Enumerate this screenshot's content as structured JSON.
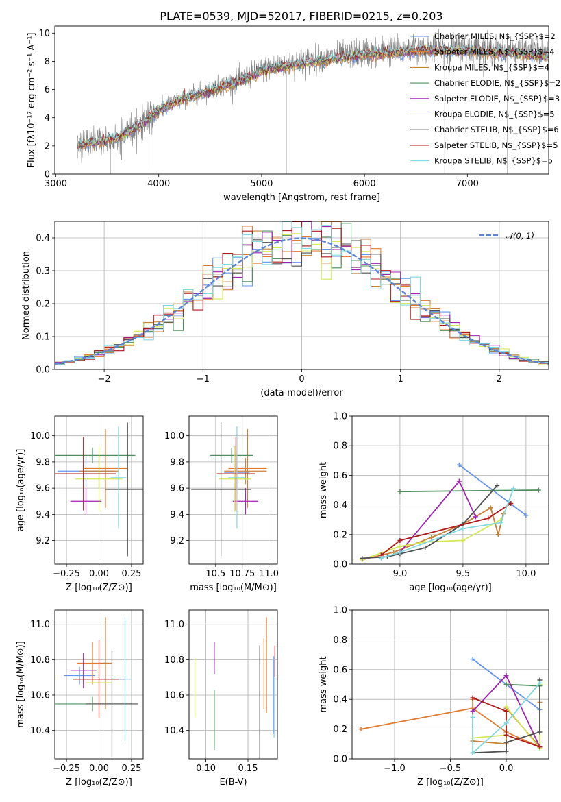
{
  "title": "PLATE=0539, MJD=52017, FIBERID=0215, z=0.203",
  "colors": [
    "#6495ed",
    "#e07b30",
    "#c8823c",
    "#4f8f5f",
    "#a020b0",
    "#d4e857",
    "#505050",
    "#b01818",
    "#80d8e0"
  ],
  "chart_data": [
    {
      "id": "spectrum",
      "type": "line",
      "xlabel": "wavelength [Angstrom, rest frame]",
      "ylabel": "Flux [fλ10⁻¹⁷ erg cm⁻² s⁻¹ A⁻¹]",
      "xlim": [
        2990,
        7790
      ],
      "ylim": [
        0,
        10.5
      ],
      "xticks": [
        "3000",
        "4000",
        "5000",
        "6000",
        "7000"
      ],
      "yticks": [
        "0",
        "2",
        "4",
        "6",
        "8",
        "10"
      ],
      "grid": false,
      "legend_position": "top-right",
      "continuum": {
        "x": [
          3210,
          3400,
          3600,
          3800,
          4000,
          4200,
          4500,
          4800,
          5000,
          5300,
          5600,
          6000,
          6500,
          7000,
          7500,
          7790
        ],
        "y": [
          2.1,
          2.3,
          2.6,
          3.4,
          4.6,
          5.3,
          6.0,
          6.7,
          7.4,
          7.9,
          8.2,
          8.6,
          8.9,
          8.9,
          8.7,
          8.5
        ]
      },
      "series": [
        {
          "name": "Chabrier MILES, N$_{SSP}$=2"
        },
        {
          "name": "Salpeter MILES, N$_{SSP}$=4"
        },
        {
          "name": "Kroupa MILES, N$_{SSP}$=4"
        },
        {
          "name": "Chabrier ELODIE, N$_{SSP}$=2"
        },
        {
          "name": "Salpeter ELODIE, N$_{SSP}$=3"
        },
        {
          "name": "Kroupa ELODIE, N$_{SSP}$=5"
        },
        {
          "name": "Chabrier STELIB, N$_{SSP}$=6"
        },
        {
          "name": "Salpeter STELIB, N$_{SSP}$=5"
        },
        {
          "name": "Kroupa STELIB, N$_{SSP}$=5"
        }
      ]
    },
    {
      "id": "residuals",
      "type": "histogram",
      "xlabel": "(data-model)/error",
      "ylabel": "Normed distribution",
      "xlim": [
        -2.5,
        2.5
      ],
      "ylim": [
        0,
        0.45
      ],
      "xticks": [
        "−2",
        "−1",
        "0",
        "1",
        "2"
      ],
      "yticks": [
        "0.0",
        "0.1",
        "0.2",
        "0.3",
        "0.4"
      ],
      "grid": true,
      "bin_width": 0.1,
      "reference": {
        "name": "𝒩(0, 1)",
        "mean": 0,
        "sigma": 1
      },
      "legend_position": "top-right"
    },
    {
      "id": "age-vs-Z",
      "type": "errorbar",
      "xlabel": "Z [log₁₀(Z/Z⊙)]",
      "ylabel": "age  [log₁₀(age/yr)]",
      "xlim": [
        -0.34,
        0.34
      ],
      "ylim": [
        9.02,
        10.15
      ],
      "xticks": [
        "−0.25",
        "0.00",
        "0.25"
      ],
      "yticks": [
        "9.2",
        "9.4",
        "9.6",
        "9.8",
        "10.0"
      ],
      "grid": true,
      "points": [
        {
          "x": -0.1,
          "xerr": 0.22,
          "y": 9.73,
          "yerr": 0.12
        },
        {
          "x": 0.05,
          "xerr": 0.17,
          "y": 9.75,
          "yerr": 0.3
        },
        {
          "x": 0.0,
          "xerr": 0.15,
          "y": 9.73,
          "yerr": 0.13
        },
        {
          "x": -0.05,
          "xerr": 0.33,
          "y": 9.85,
          "yerr": 0.06
        },
        {
          "x": -0.1,
          "xerr": 0.12,
          "y": 9.5,
          "yerr": 0.1
        },
        {
          "x": 0.0,
          "xerr": 0.18,
          "y": 9.67,
          "yerr": 0.25
        },
        {
          "x": 0.22,
          "xerr": 0.17,
          "y": 9.59,
          "yerr": 0.51
        },
        {
          "x": -0.12,
          "xerr": 0.25,
          "y": 9.71,
          "yerr": 0.28
        },
        {
          "x": 0.15,
          "xerr": 0.06,
          "y": 9.68,
          "yerr": 0.39
        }
      ]
    },
    {
      "id": "age-vs-mass",
      "type": "errorbar",
      "xlabel": "mass [log₁₀(M/M⊙)]",
      "ylabel": "",
      "xlim": [
        10.25,
        11.08
      ],
      "ylim": [
        9.02,
        10.15
      ],
      "xticks": [
        "10.5",
        "10.75",
        "11.0"
      ],
      "yticks": [
        "9.2",
        "9.4",
        "9.6",
        "9.8",
        "10.0"
      ],
      "grid": true,
      "points": [
        {
          "x": 10.7,
          "xerr": 0.12,
          "y": 9.72,
          "yerr": 0.13
        },
        {
          "x": 10.8,
          "xerr": 0.18,
          "y": 9.75,
          "yerr": 0.3
        },
        {
          "x": 10.78,
          "xerr": 0.2,
          "y": 9.73,
          "yerr": 0.1
        },
        {
          "x": 10.65,
          "xerr": 0.2,
          "y": 9.85,
          "yerr": 0.06
        },
        {
          "x": 10.78,
          "xerr": 0.12,
          "y": 9.5,
          "yerr": 0.1
        },
        {
          "x": 10.68,
          "xerr": 0.15,
          "y": 9.67,
          "yerr": 0.25
        },
        {
          "x": 10.55,
          "xerr": 0.28,
          "y": 9.59,
          "yerr": 0.51
        },
        {
          "x": 10.69,
          "xerr": 0.18,
          "y": 9.71,
          "yerr": 0.28
        },
        {
          "x": 10.7,
          "xerr": 0.08,
          "y": 9.68,
          "yerr": 0.39
        }
      ]
    },
    {
      "id": "weight-vs-age",
      "type": "line",
      "xlabel": "age  [log₁₀(age/yr)]",
      "ylabel": "mass weight",
      "xlim": [
        8.62,
        10.18
      ],
      "ylim": [
        0,
        1
      ],
      "xticks": [
        "9.0",
        "9.5",
        "10.0"
      ],
      "yticks": [
        "0.0",
        "0.2",
        "0.4",
        "0.6",
        "0.8",
        "1.0"
      ],
      "grid": true,
      "series": [
        {
          "x": [
            9.47,
            10.0
          ],
          "y": [
            0.67,
            0.33
          ]
        },
        {
          "x": [
            8.7,
            8.95,
            9.25,
            9.5,
            9.72,
            9.78,
            9.82
          ],
          "y": [
            0.03,
            0.08,
            0.18,
            0.27,
            0.38,
            0.2,
            0.34
          ]
        },
        {
          "x": [
            8.7,
            8.95,
            9.25,
            9.5,
            9.72,
            9.78,
            9.82
          ],
          "y": [
            0.03,
            0.08,
            0.18,
            0.27,
            0.38,
            0.2,
            0.34
          ]
        },
        {
          "x": [
            9.0,
            10.1
          ],
          "y": [
            0.49,
            0.5
          ]
        },
        {
          "x": [
            9.0,
            9.47,
            9.6
          ],
          "y": [
            0.08,
            0.56,
            0.32
          ]
        },
        {
          "x": [
            8.7,
            9.0,
            9.2,
            9.5,
            9.8
          ],
          "y": [
            0.03,
            0.12,
            0.15,
            0.16,
            0.3
          ]
        },
        {
          "x": [
            8.7,
            8.9,
            9.0,
            9.2,
            9.5,
            9.77
          ],
          "y": [
            0.04,
            0.05,
            0.07,
            0.11,
            0.27,
            0.53
          ]
        },
        {
          "x": [
            8.85,
            9.0,
            9.7,
            9.88
          ],
          "y": [
            0.06,
            0.16,
            0.31,
            0.41
          ]
        },
        {
          "x": [
            8.85,
            9.0,
            9.5,
            9.8,
            9.9
          ],
          "y": [
            0.04,
            0.08,
            0.24,
            0.28,
            0.51
          ]
        }
      ]
    },
    {
      "id": "mass-vs-Z",
      "type": "errorbar",
      "xlabel": "Z [log₁₀(Z/Z⊙)]",
      "ylabel": "mass [log₁₀(M/M⊙)]",
      "xlim": [
        -0.34,
        0.34
      ],
      "ylim": [
        10.24,
        11.08
      ],
      "xticks": [
        "−0.25",
        "0.00",
        "0.25"
      ],
      "yticks": [
        "10.4",
        "10.6",
        "10.8",
        "11.0"
      ],
      "grid": true,
      "points": [
        {
          "x": -0.15,
          "xerr": 0.12,
          "y": 10.71,
          "yerr": 0.05
        },
        {
          "x": -0.05,
          "xerr": 0.12,
          "y": 10.78,
          "yerr": 0.12
        },
        {
          "x": 0.05,
          "xerr": 0.05,
          "y": 10.78,
          "yerr": 0.26
        },
        {
          "x": -0.05,
          "xerr": 0.3,
          "y": 10.55,
          "yerr": 0.04
        },
        {
          "x": -0.12,
          "xerr": 0.1,
          "y": 10.74,
          "yerr": 0.1
        },
        {
          "x": 0.0,
          "xerr": 0.1,
          "y": 10.67,
          "yerr": 0.2
        },
        {
          "x": 0.1,
          "xerr": 0.2,
          "y": 10.55,
          "yerr": 0.3
        },
        {
          "x": 0.0,
          "xerr": 0.2,
          "y": 10.69,
          "yerr": 0.22
        },
        {
          "x": 0.2,
          "xerr": 0.05,
          "y": 10.69,
          "yerr": 0.35
        }
      ]
    },
    {
      "id": "mass-vs-EBV",
      "type": "errorbar",
      "xlabel": "E(B-V)",
      "ylabel": "",
      "xlim": [
        0.08,
        0.185
      ],
      "ylim": [
        10.24,
        11.08
      ],
      "xticks": [
        "0.10",
        "0.15"
      ],
      "yticks": [
        "10.4",
        "10.6",
        "10.8",
        "11.0"
      ],
      "grid": true,
      "points": [
        {
          "x": 0.18,
          "y": 10.6,
          "yerr": 0.22
        },
        {
          "x": 0.172,
          "y": 10.77,
          "yerr": 0.27
        },
        {
          "x": 0.169,
          "y": 10.72,
          "yerr": 0.2
        },
        {
          "x": 0.11,
          "y": 10.46,
          "yerr": 0.17
        },
        {
          "x": 0.11,
          "y": 10.81,
          "yerr": 0.09
        },
        {
          "x": 0.087,
          "y": 10.64,
          "yerr": 0.17
        },
        {
          "x": 0.164,
          "y": 10.56,
          "yerr": 0.32
        },
        {
          "x": 0.182,
          "y": 10.79,
          "yerr": 0.09
        },
        {
          "x": 0.181,
          "y": 10.59,
          "yerr": 0.23
        }
      ]
    },
    {
      "id": "weight-vs-Z",
      "type": "line",
      "xlabel": "Z [log₁₀(Z/Z⊙)]",
      "ylabel": "mass weight",
      "xlim": [
        -1.38,
        0.38
      ],
      "ylim": [
        0,
        1
      ],
      "xticks": [
        "−1.0",
        "−0.5",
        "0.0"
      ],
      "yticks": [
        "0.0",
        "0.2",
        "0.4",
        "0.6",
        "0.8",
        "1.0"
      ],
      "grid": true,
      "series": [
        {
          "x": [
            -0.3,
            0.3
          ],
          "y": [
            0.67,
            0.33
          ]
        },
        {
          "x": [
            -1.3,
            -0.3,
            0.0,
            0.3,
            0.3
          ],
          "y": [
            0.2,
            0.34,
            0.18,
            0.08,
            0.38
          ]
        },
        {
          "x": [
            -0.3,
            -0.3,
            0.0,
            0.0,
            0.3
          ],
          "y": [
            0.4,
            0.12,
            0.1,
            0.34,
            0.08
          ]
        },
        {
          "x": [
            0.0,
            0.3
          ],
          "y": [
            0.5,
            0.49
          ]
        },
        {
          "x": [
            -0.3,
            0.0,
            0.3
          ],
          "y": [
            0.32,
            0.56,
            0.08
          ]
        },
        {
          "x": [
            -0.3,
            0.0,
            0.0,
            0.3,
            0.3
          ],
          "y": [
            0.14,
            0.16,
            0.35,
            0.07,
            0.5
          ]
        },
        {
          "x": [
            -0.3,
            0.0,
            0.0,
            0.3,
            0.3
          ],
          "y": [
            0.04,
            0.05,
            0.11,
            0.18,
            0.53
          ]
        },
        {
          "x": [
            -0.3,
            0.0,
            0.0,
            0.3
          ],
          "y": [
            0.41,
            0.32,
            0.16,
            0.08
          ]
        },
        {
          "x": [
            -0.3,
            -0.3,
            0.0,
            0.3
          ],
          "y": [
            0.28,
            0.04,
            0.24,
            0.51
          ]
        }
      ]
    }
  ]
}
